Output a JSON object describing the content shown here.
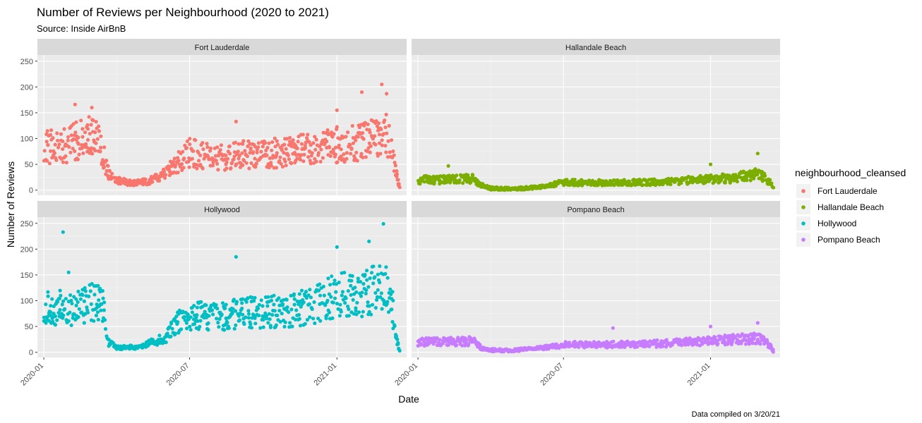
{
  "chart_data": {
    "type": "scatter",
    "title": "Number of Reviews per Neighbourhood (2020 to 2021)",
    "subtitle": "Source: Inside AirBnB",
    "xlabel": "Date",
    "ylabel": "Number of Reviews",
    "caption": "Data compiled on 3/20/21",
    "grid": true,
    "facets": "2x2",
    "legend": {
      "title": "neighbourhood_cleansed",
      "placement": "right",
      "entries": [
        {
          "label": "Fort Lauderdale",
          "color": "#F8766D"
        },
        {
          "label": "Hallandale Beach",
          "color": "#7CAE00"
        },
        {
          "label": "Hollywood",
          "color": "#00BFC4"
        },
        {
          "label": "Pompano Beach",
          "color": "#C77CFF"
        }
      ]
    },
    "x_range": [
      "2019-12-24",
      "2021-03-29"
    ],
    "ylim": [
      -10,
      262
    ],
    "x_ticks": [
      {
        "label": "2020-01",
        "date": "2020-01-01"
      },
      {
        "label": "2020-07",
        "date": "2020-07-01"
      },
      {
        "label": "2021-01",
        "date": "2021-01-01"
      }
    ],
    "y_ticks": [
      0,
      50,
      100,
      150,
      200,
      250
    ],
    "panels": [
      {
        "name": "Fort Lauderdale",
        "color": "#F8766D",
        "profile": [
          [
            "2020-01-01",
            85
          ],
          [
            "2020-01-20",
            82
          ],
          [
            "2020-02-10",
            95
          ],
          [
            "2020-03-01",
            105
          ],
          [
            "2020-03-12",
            85
          ],
          [
            "2020-03-20",
            35
          ],
          [
            "2020-04-01",
            18
          ],
          [
            "2020-04-20",
            14
          ],
          [
            "2020-05-10",
            16
          ],
          [
            "2020-06-01",
            32
          ],
          [
            "2020-06-20",
            60
          ],
          [
            "2020-07-01",
            72
          ],
          [
            "2020-08-01",
            62
          ],
          [
            "2020-09-01",
            68
          ],
          [
            "2020-10-01",
            70
          ],
          [
            "2020-11-01",
            74
          ],
          [
            "2020-12-01",
            80
          ],
          [
            "2021-01-01",
            88
          ],
          [
            "2021-02-01",
            92
          ],
          [
            "2021-03-01",
            110
          ],
          [
            "2021-03-10",
            95
          ],
          [
            "2021-03-15",
            35
          ],
          [
            "2021-03-20",
            6
          ]
        ],
        "outliers": [
          [
            "2020-02-09",
            166
          ],
          [
            "2020-03-01",
            160
          ],
          [
            "2020-08-28",
            133
          ],
          [
            "2021-01-01",
            155
          ],
          [
            "2021-02-01",
            190
          ],
          [
            "2021-02-26",
            205
          ],
          [
            "2021-03-04",
            187
          ]
        ]
      },
      {
        "name": "Hallandale Beach",
        "color": "#7CAE00",
        "profile": [
          [
            "2020-01-01",
            20
          ],
          [
            "2020-02-01",
            20
          ],
          [
            "2020-03-10",
            22
          ],
          [
            "2020-03-20",
            10
          ],
          [
            "2020-04-01",
            3
          ],
          [
            "2020-05-01",
            2
          ],
          [
            "2020-06-01",
            6
          ],
          [
            "2020-07-01",
            15
          ],
          [
            "2020-09-01",
            14
          ],
          [
            "2020-11-01",
            16
          ],
          [
            "2021-01-01",
            21
          ],
          [
            "2021-02-01",
            24
          ],
          [
            "2021-03-01",
            30
          ],
          [
            "2021-03-15",
            18
          ],
          [
            "2021-03-20",
            4
          ]
        ],
        "outliers": [
          [
            "2020-02-08",
            47
          ],
          [
            "2021-03-01",
            71
          ],
          [
            "2021-01-01",
            50
          ]
        ]
      },
      {
        "name": "Hollywood",
        "color": "#00BFC4",
        "profile": [
          [
            "2020-01-01",
            88
          ],
          [
            "2020-02-01",
            85
          ],
          [
            "2020-03-01",
            95
          ],
          [
            "2020-03-15",
            90
          ],
          [
            "2020-03-20",
            20
          ],
          [
            "2020-04-01",
            9
          ],
          [
            "2020-05-01",
            10
          ],
          [
            "2020-06-01",
            30
          ],
          [
            "2020-06-20",
            62
          ],
          [
            "2020-07-01",
            72
          ],
          [
            "2020-08-01",
            68
          ],
          [
            "2020-09-01",
            75
          ],
          [
            "2020-10-01",
            78
          ],
          [
            "2020-11-01",
            80
          ],
          [
            "2020-12-01",
            90
          ],
          [
            "2021-01-01",
            110
          ],
          [
            "2021-02-01",
            115
          ],
          [
            "2021-03-01",
            130
          ],
          [
            "2021-03-10",
            100
          ],
          [
            "2021-03-15",
            32
          ],
          [
            "2021-03-20",
            2
          ]
        ],
        "outliers": [
          [
            "2020-01-25",
            233
          ],
          [
            "2020-02-01",
            155
          ],
          [
            "2020-08-28",
            185
          ],
          [
            "2021-01-01",
            204
          ],
          [
            "2021-02-28",
            249
          ],
          [
            "2021-02-10",
            215
          ]
        ]
      },
      {
        "name": "Pompano Beach",
        "color": "#C77CFF",
        "profile": [
          [
            "2020-01-01",
            20
          ],
          [
            "2020-02-01",
            20
          ],
          [
            "2020-03-10",
            22
          ],
          [
            "2020-03-20",
            8
          ],
          [
            "2020-04-01",
            4
          ],
          [
            "2020-05-01",
            4
          ],
          [
            "2020-06-01",
            8
          ],
          [
            "2020-07-01",
            15
          ],
          [
            "2020-09-01",
            15
          ],
          [
            "2020-11-01",
            17
          ],
          [
            "2021-01-01",
            22
          ],
          [
            "2021-02-01",
            25
          ],
          [
            "2021-03-01",
            28
          ],
          [
            "2021-03-15",
            15
          ],
          [
            "2021-03-20",
            3
          ]
        ],
        "outliers": [
          [
            "2020-09-01",
            47
          ],
          [
            "2021-01-01",
            50
          ],
          [
            "2021-03-01",
            57
          ]
        ]
      }
    ]
  }
}
